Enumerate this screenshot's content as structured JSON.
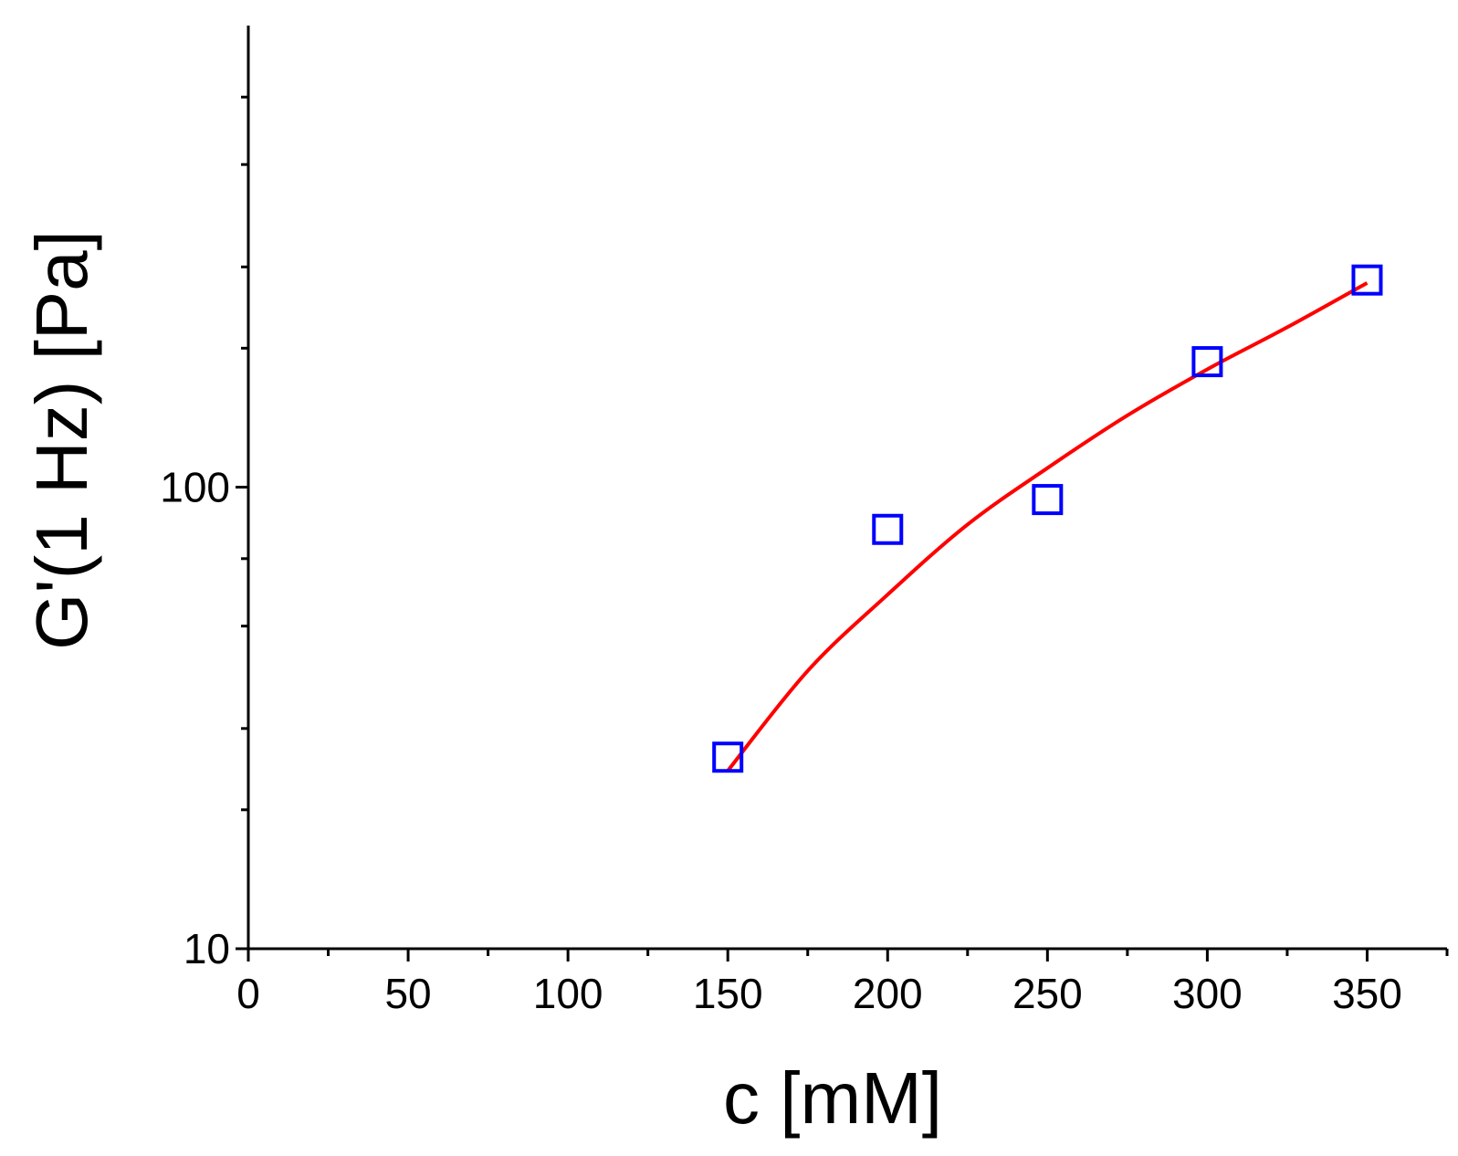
{
  "chart_data": {
    "type": "scatter",
    "title": "",
    "xlabel": "c  [mM]",
    "ylabel": "G'(1 Hz)  [Pa]",
    "xlim": [
      0,
      375
    ],
    "ylim": [
      10,
      1000
    ],
    "y_scale": "log",
    "x_ticks": [
      0,
      50,
      100,
      150,
      200,
      250,
      300,
      350
    ],
    "x_tick_labels": [
      "0",
      "50",
      "100",
      "150",
      "200",
      "250",
      "300",
      "350"
    ],
    "y_ticks": [
      10,
      100
    ],
    "y_tick_labels": [
      "10",
      "100"
    ],
    "grid": false,
    "series": [
      {
        "kind": "markers",
        "marker": "open-square",
        "color": "#0000ff",
        "x": [
          150,
          200,
          250,
          300,
          350
        ],
        "y": [
          26,
          81,
          94,
          187,
          281
        ]
      },
      {
        "kind": "fit-line",
        "color": "#ff0000",
        "x": [
          150,
          175,
          200,
          225,
          250,
          275,
          300,
          325,
          350
        ],
        "y": [
          24.3,
          40,
          58.5,
          83,
          110,
          143,
          180,
          222,
          277
        ]
      }
    ]
  }
}
